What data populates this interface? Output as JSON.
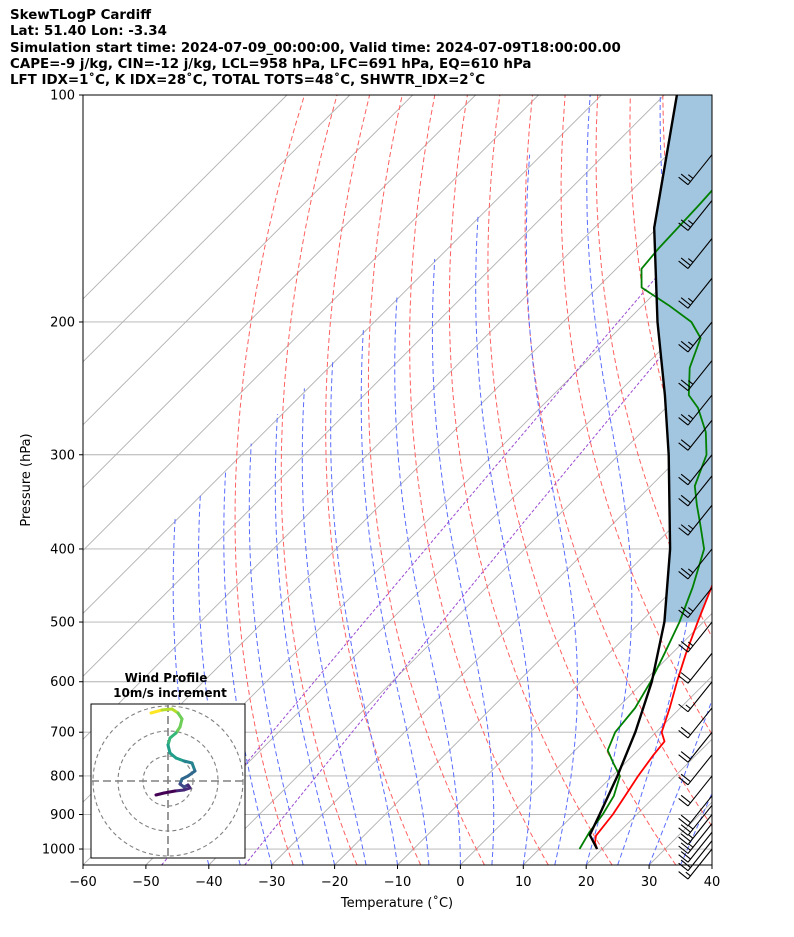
{
  "header": {
    "line1": "SkewTLogP Cardiff",
    "line2": "Lat: 51.40   Lon: -3.34",
    "line3": "Simulation start time: 2024-07-09_00:00:00, Valid time: 2024-07-09T18:00:00.00",
    "line4": "CAPE=-9 j/kg, CIN=-12 j/kg, LCL=958 hPa, LFC=691 hPa, EQ=610 hPa",
    "line5": "LFT IDX=1˚C, K IDX=28˚C, TOTAL TOTS=48˚C, SHWTR_IDX=2˚C"
  },
  "chart_data": {
    "type": "line",
    "subtype": "skew-T log-P diagram",
    "xlabel": "Temperature (˚C)",
    "ylabel": "Pressure (hPa)",
    "xlim": [
      -60,
      40
    ],
    "ylim": [
      1050,
      100
    ],
    "x_ticks": [
      -60,
      -50,
      -40,
      -30,
      -20,
      -10,
      0,
      10,
      20,
      30,
      40
    ],
    "x_tick_labels": [
      "−60",
      "−50",
      "−40",
      "−30",
      "−20",
      "−10",
      "0",
      "10",
      "20",
      "30",
      "40"
    ],
    "y_ticks": [
      1000,
      900,
      800,
      700,
      600,
      500,
      400,
      300,
      200,
      100
    ],
    "y_tick_labels": [
      "1000",
      "900",
      "800",
      "700",
      "600",
      "500",
      "400",
      "300",
      "200",
      "100"
    ],
    "grid": true,
    "series": [
      {
        "name": "Temperature",
        "color": "#ff0000",
        "points": [
          [
            1000,
            19.2
          ],
          [
            980,
            17.8
          ],
          [
            960,
            16.9
          ],
          [
            900,
            16.2
          ],
          [
            850,
            15.2
          ],
          [
            800,
            14.1
          ],
          [
            750,
            13.2
          ],
          [
            720,
            12.8
          ],
          [
            700,
            10.9
          ],
          [
            650,
            8.3
          ],
          [
            600,
            5.3
          ],
          [
            550,
            2.2
          ],
          [
            500,
            -0.9
          ],
          [
            450,
            -4.2
          ],
          [
            400,
            -8.1
          ],
          [
            370,
            -11.0
          ],
          [
            350,
            -13.8
          ],
          [
            320,
            -17.6
          ],
          [
            300,
            -20.8
          ],
          [
            280,
            -24.7
          ],
          [
            270,
            -27.4
          ],
          [
            260,
            -28.9
          ],
          [
            250,
            -29.2
          ],
          [
            240,
            -29.6
          ],
          [
            230,
            -29.4
          ],
          [
            220,
            -28.2
          ],
          [
            210,
            -26.6
          ],
          [
            200,
            -23.8
          ],
          [
            180,
            -19.3
          ],
          [
            160,
            -15.8
          ],
          [
            140,
            -13.6
          ],
          [
            120,
            -11.6
          ],
          [
            110,
            -10.9
          ],
          [
            100,
            -10.6
          ]
        ]
      },
      {
        "name": "Dewpoint",
        "color": "#008000",
        "points": [
          [
            1000,
            16.4
          ],
          [
            950,
            15.3
          ],
          [
            900,
            14.6
          ],
          [
            850,
            13.4
          ],
          [
            800,
            11.2
          ],
          [
            770,
            8.2
          ],
          [
            740,
            5.2
          ],
          [
            700,
            3.5
          ],
          [
            650,
            2.8
          ],
          [
            600,
            1.1
          ],
          [
            550,
            -1.2
          ],
          [
            500,
            -3.8
          ],
          [
            450,
            -7.2
          ],
          [
            400,
            -11.5
          ],
          [
            370,
            -16.2
          ],
          [
            350,
            -19.6
          ],
          [
            330,
            -23.0
          ],
          [
            300,
            -26.1
          ],
          [
            280,
            -29.8
          ],
          [
            260,
            -34.9
          ],
          [
            250,
            -38.4
          ],
          [
            230,
            -42.6
          ],
          [
            210,
            -45.6
          ],
          [
            200,
            -49.6
          ],
          [
            190,
            -55.9
          ],
          [
            180,
            -63.0
          ],
          [
            170,
            -66.0
          ],
          [
            160,
            -66.5
          ],
          [
            140,
            -67.0
          ],
          [
            120,
            -67.8
          ],
          [
            100,
            -68.2
          ]
        ]
      },
      {
        "name": "Parcel profile",
        "color": "#000000",
        "points": [
          [
            1000,
            19.2
          ],
          [
            958,
            15.8
          ],
          [
            900,
            14.1
          ],
          [
            800,
            10.8
          ],
          [
            700,
            6.7
          ],
          [
            600,
            1.3
          ],
          [
            500,
            -6.2
          ],
          [
            400,
            -16.9
          ],
          [
            300,
            -32.1
          ],
          [
            250,
            -42.2
          ],
          [
            200,
            -55.0
          ],
          [
            150,
            -70.5
          ],
          [
            100,
            -88.0
          ]
        ]
      }
    ],
    "cape_region": {
      "color": "#a3c6e0",
      "bounded_by": [
        "Temperature",
        "Parcel profile"
      ]
    },
    "wind_barbs": [
      {
        "p": 1000,
        "speed_kt": 15
      },
      {
        "p": 975,
        "speed_kt": 20
      },
      {
        "p": 950,
        "speed_kt": 20
      },
      {
        "p": 925,
        "speed_kt": 25
      },
      {
        "p": 900,
        "speed_kt": 25
      },
      {
        "p": 875,
        "speed_kt": 25
      },
      {
        "p": 850,
        "speed_kt": 20
      },
      {
        "p": 800,
        "speed_kt": 20
      },
      {
        "p": 750,
        "speed_kt": 20
      },
      {
        "p": 700,
        "speed_kt": 20
      },
      {
        "p": 650,
        "speed_kt": 20
      },
      {
        "p": 600,
        "speed_kt": 15
      },
      {
        "p": 550,
        "speed_kt": 20
      },
      {
        "p": 500,
        "speed_kt": 25
      },
      {
        "p": 450,
        "speed_kt": 25
      },
      {
        "p": 400,
        "speed_kt": 25
      },
      {
        "p": 350,
        "speed_kt": 25
      },
      {
        "p": 320,
        "speed_kt": 20
      },
      {
        "p": 300,
        "speed_kt": 20
      },
      {
        "p": 270,
        "speed_kt": 20
      },
      {
        "p": 250,
        "speed_kt": 25
      },
      {
        "p": 225,
        "speed_kt": 25
      },
      {
        "p": 200,
        "speed_kt": 25
      },
      {
        "p": 175,
        "speed_kt": 25
      },
      {
        "p": 155,
        "speed_kt": 25
      },
      {
        "p": 138,
        "speed_kt": 25
      },
      {
        "p": 120,
        "speed_kt": 25
      }
    ],
    "hodograph": {
      "title_line1": "Wind Profile",
      "title_line2": "10m/s increment",
      "ring_increment_ms": 10,
      "u_v_points": [
        [
          -0.5,
          6.8
        ],
        [
          0.6,
          7.1
        ],
        [
          1.6,
          7.2
        ],
        [
          2.2,
          6.8
        ],
        [
          2.6,
          6.2
        ],
        [
          2.4,
          5.4
        ],
        [
          2.0,
          4.8
        ],
        [
          1.4,
          4.3
        ],
        [
          1.2,
          3.6
        ],
        [
          1.4,
          2.8
        ],
        [
          2.0,
          2.3
        ],
        [
          2.8,
          2.0
        ],
        [
          3.6,
          1.8
        ],
        [
          3.9,
          1.0
        ],
        [
          3.2,
          0.5
        ],
        [
          2.6,
          0.2
        ],
        [
          2.4,
          -0.3
        ],
        [
          2.8,
          -0.6
        ],
        [
          3.2,
          -0.4
        ],
        [
          3.4,
          -0.7
        ],
        [
          2.8,
          -0.9
        ],
        [
          1.9,
          -1.0
        ],
        [
          0.8,
          -1.2
        ],
        [
          0.0,
          -1.4
        ]
      ]
    }
  }
}
